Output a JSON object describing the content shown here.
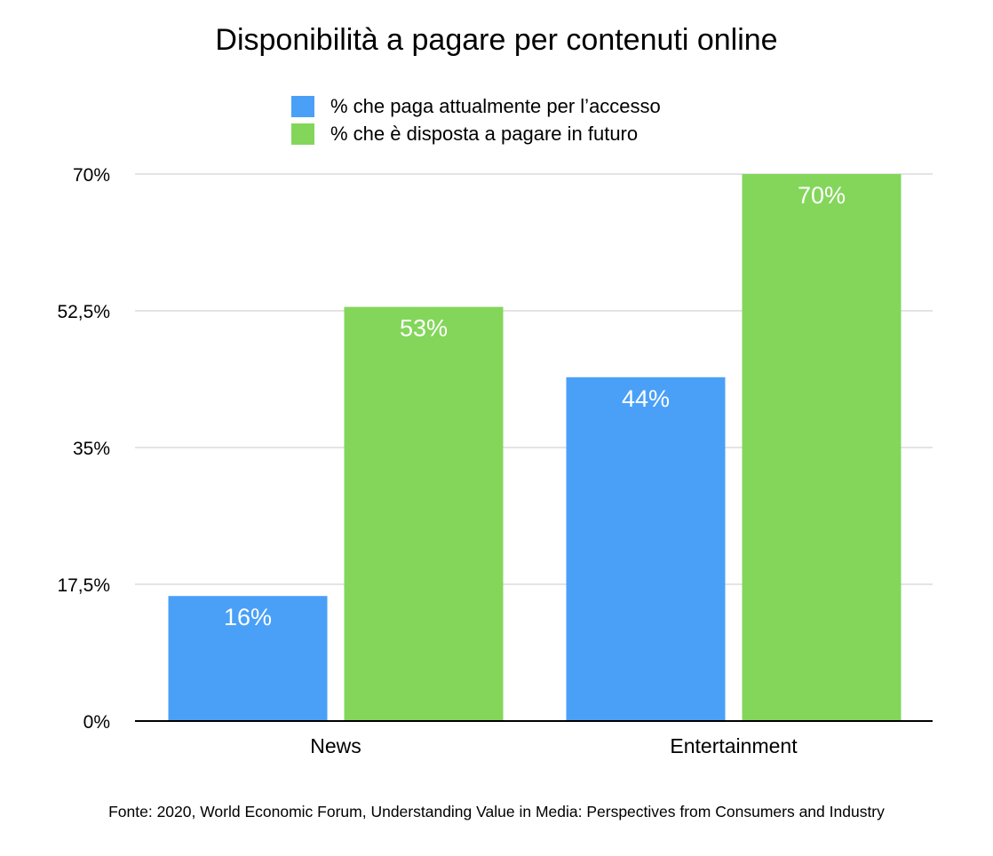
{
  "chart_data": {
    "type": "bar",
    "title": "Disponibilità a pagare per contenuti online",
    "categories": [
      "News",
      "Entertainment"
    ],
    "series": [
      {
        "name": "% che paga attualmente per l’accesso",
        "color": "#4aa0f7",
        "values": [
          16,
          44
        ],
        "labels": [
          "16%",
          "44%"
        ]
      },
      {
        "name": "% che è disposta a pagare in futuro",
        "color": "#83d65a",
        "values": [
          53,
          70
        ],
        "labels": [
          "53%",
          "70%"
        ]
      }
    ],
    "ylim": [
      0,
      70
    ],
    "yticks": [
      0,
      17.5,
      35,
      52.5,
      70
    ],
    "ytick_labels": [
      "0%",
      "17,5%",
      "35%",
      "52,5%",
      "70%"
    ],
    "grid": true,
    "legend_position": "top-center",
    "xlabel": "",
    "ylabel": ""
  },
  "source_note": "Fonte: 2020, World Economic Forum, Understanding Value in Media: Perspectives from Consumers and Industry"
}
